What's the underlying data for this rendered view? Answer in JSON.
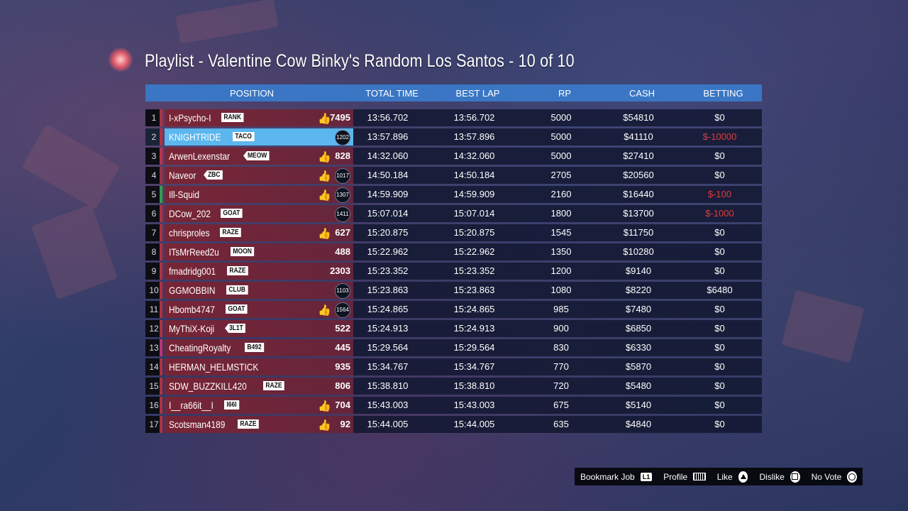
{
  "title": "Playlist - Valentine Cow Binky's Random Los Santos - 10 of 10",
  "columns": {
    "position": "POSITION",
    "total_time": "TOTAL TIME",
    "best_lap": "BEST LAP",
    "rp": "RP",
    "cash": "CASH",
    "betting": "BETTING"
  },
  "colors": {
    "header_bg": "#3a76c4",
    "highlight_row": "#5bb7ee",
    "row_bg": "#7d2332",
    "negative": "#e23b3b"
  },
  "rows": [
    {
      "pos": "1",
      "name": "I-xPsycho-I",
      "tag": "RANK",
      "tag_shape": false,
      "thumb": true,
      "level": "7495",
      "level_badge": false,
      "bar": "#b03040",
      "total": "13:56.702",
      "best": "13:56.702",
      "rp": "5000",
      "cash": "$54810",
      "bet": "$0",
      "bet_neg": false,
      "me": false
    },
    {
      "pos": "2",
      "name": "KNIGHTRIDE",
      "tag": "TACO",
      "tag_shape": false,
      "thumb": false,
      "level": "1202",
      "level_badge": true,
      "bar": "#b03040",
      "total": "13:57.896",
      "best": "13:57.896",
      "rp": "5000",
      "cash": "$41110",
      "bet": "$-10000",
      "bet_neg": true,
      "me": true
    },
    {
      "pos": "3",
      "name": "ArwenLexenstar",
      "tag": "MEOW",
      "tag_shape": true,
      "thumb": true,
      "level": "828",
      "level_badge": false,
      "bar": "#c0304a",
      "total": "14:32.060",
      "best": "14:32.060",
      "rp": "5000",
      "cash": "$27410",
      "bet": "$0",
      "bet_neg": false,
      "me": false
    },
    {
      "pos": "4",
      "name": "Naveor",
      "tag": "ZBC",
      "tag_shape": true,
      "thumb": true,
      "level": "1017",
      "level_badge": true,
      "bar": "#a03040",
      "total": "14:50.184",
      "best": "14:50.184",
      "rp": "2705",
      "cash": "$20560",
      "bet": "$0",
      "bet_neg": false,
      "me": false
    },
    {
      "pos": "5",
      "name": "Ill-Squid",
      "tag": "",
      "tag_shape": false,
      "thumb": true,
      "level": "1307",
      "level_badge": true,
      "bar": "#2fa04a",
      "total": "14:59.909",
      "best": "14:59.909",
      "rp": "2160",
      "cash": "$16440",
      "bet": "$-100",
      "bet_neg": true,
      "me": false
    },
    {
      "pos": "6",
      "name": "DCow_202",
      "tag": "GOAT",
      "tag_shape": false,
      "thumb": false,
      "level": "1411",
      "level_badge": true,
      "bar": "#b03040",
      "total": "15:07.014",
      "best": "15:07.014",
      "rp": "1800",
      "cash": "$13700",
      "bet": "$-1000",
      "bet_neg": true,
      "me": false
    },
    {
      "pos": "7",
      "name": "chrisproles",
      "tag": "RAZE",
      "tag_shape": false,
      "thumb": true,
      "level": "627",
      "level_badge": false,
      "bar": "#b03040",
      "total": "15:20.875",
      "best": "15:20.875",
      "rp": "1545",
      "cash": "$11750",
      "bet": "$0",
      "bet_neg": false,
      "me": false
    },
    {
      "pos": "8",
      "name": "ITsMrReed2u",
      "tag": "MOON",
      "tag_shape": false,
      "thumb": false,
      "level": "488",
      "level_badge": false,
      "bar": "#b03040",
      "total": "15:22.962",
      "best": "15:22.962",
      "rp": "1350",
      "cash": "$10280",
      "bet": "$0",
      "bet_neg": false,
      "me": false
    },
    {
      "pos": "9",
      "name": "fmadridg001",
      "tag": "RAZE",
      "tag_shape": false,
      "thumb": false,
      "level": "2303",
      "level_badge": false,
      "bar": "#b03040",
      "total": "15:23.352",
      "best": "15:23.352",
      "rp": "1200",
      "cash": "$9140",
      "bet": "$0",
      "bet_neg": false,
      "me": false
    },
    {
      "pos": "10",
      "name": "GGMOBBIN",
      "tag": "CLUB",
      "tag_shape": false,
      "thumb": false,
      "level": "1103",
      "level_badge": true,
      "bar": "#b03040",
      "total": "15:23.863",
      "best": "15:23.863",
      "rp": "1080",
      "cash": "$8220",
      "bet": "$6480",
      "bet_neg": false,
      "me": false
    },
    {
      "pos": "11",
      "name": "Hbomb4747",
      "tag": "GOAT",
      "tag_shape": false,
      "thumb": true,
      "level": "1564",
      "level_badge": true,
      "bar": "#b03040",
      "total": "15:24.865",
      "best": "15:24.865",
      "rp": "985",
      "cash": "$7480",
      "bet": "$0",
      "bet_neg": false,
      "me": false
    },
    {
      "pos": "12",
      "name": "MyThiX-Koji",
      "tag": "3L1T",
      "tag_shape": true,
      "thumb": false,
      "level": "522",
      "level_badge": false,
      "bar": "#b03040",
      "total": "15:24.913",
      "best": "15:24.913",
      "rp": "900",
      "cash": "$6850",
      "bet": "$0",
      "bet_neg": false,
      "me": false
    },
    {
      "pos": "13",
      "name": "CheatingRoyalty",
      "tag": "B492",
      "tag_shape": false,
      "thumb": false,
      "level": "445",
      "level_badge": false,
      "bar": "#c03070",
      "total": "15:29.564",
      "best": "15:29.564",
      "rp": "830",
      "cash": "$6330",
      "bet": "$0",
      "bet_neg": false,
      "me": false
    },
    {
      "pos": "14",
      "name": "HERMAN_HELMSTICK",
      "tag": "",
      "tag_shape": false,
      "thumb": false,
      "level": "935",
      "level_badge": false,
      "bar": "#b03040",
      "total": "15:34.767",
      "best": "15:34.767",
      "rp": "770",
      "cash": "$5870",
      "bet": "$0",
      "bet_neg": false,
      "me": false
    },
    {
      "pos": "15",
      "name": "SDW_BUZZKILL420",
      "tag": "RAZE",
      "tag_shape": false,
      "thumb": false,
      "level": "806",
      "level_badge": false,
      "bar": "#b03040",
      "total": "15:38.810",
      "best": "15:38.810",
      "rp": "720",
      "cash": "$5480",
      "bet": "$0",
      "bet_neg": false,
      "me": false
    },
    {
      "pos": "16",
      "name": "I__ra66it__I",
      "tag": "I66I",
      "tag_shape": false,
      "thumb": true,
      "level": "704",
      "level_badge": false,
      "bar": "#b03040",
      "total": "15:43.003",
      "best": "15:43.003",
      "rp": "675",
      "cash": "$5140",
      "bet": "$0",
      "bet_neg": false,
      "me": false
    },
    {
      "pos": "17",
      "name": "Scotsman4189",
      "tag": "RAZE",
      "tag_shape": false,
      "thumb": true,
      "level": "92",
      "level_badge": false,
      "bar": "#b03040",
      "total": "15:44.005",
      "best": "15:44.005",
      "rp": "635",
      "cash": "$4840",
      "bet": "$0",
      "bet_neg": false,
      "me": false
    }
  ],
  "footer": {
    "bookmark": "Bookmark Job",
    "bookmark_btn": "L1",
    "profile": "Profile",
    "like": "Like",
    "dislike": "Dislike",
    "novote": "No Vote"
  }
}
